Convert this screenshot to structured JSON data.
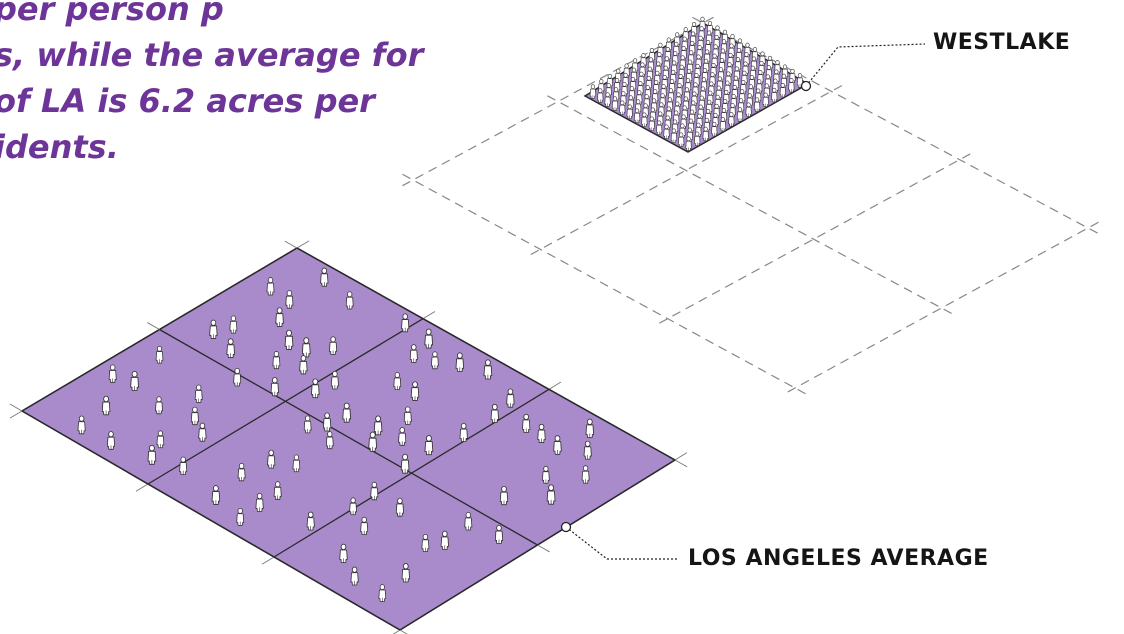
{
  "intro": {
    "lines": [
      "per person p",
      "s, while the average for",
      "of LA is 6.2 acres per",
      "idents."
    ]
  },
  "callouts": {
    "westlake": "WESTLAKE",
    "la_average": "LOS ANGELES AVERAGE"
  },
  "colors": {
    "accent_text": "#6e3599",
    "plot_fill": "#a98bcc",
    "plot_line": "#2a2a2a",
    "dash_line": "#888888",
    "figure_fill": "#ffffff",
    "figure_stroke": "#333333"
  },
  "diagram": {
    "westlake_plot": {
      "crowd_rows": 14,
      "crowd_cols": 14
    },
    "la_average_plot": {
      "grid_cells": 6,
      "people_scattered": 80
    },
    "ghost_grid_cells": 6
  }
}
